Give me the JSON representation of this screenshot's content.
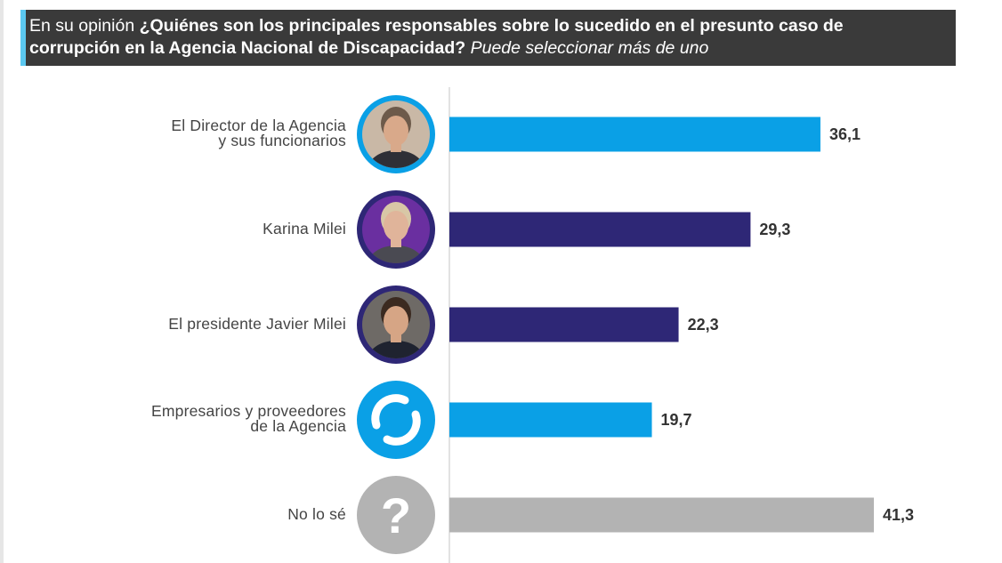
{
  "header": {
    "intro": "En su opinión",
    "question": "¿Quiénes son los principales responsables sobre lo sucedido en el presunto caso de corrupción en la Agencia Nacional de Discapacidad?",
    "note": "Puede seleccionar más de uno"
  },
  "colors": {
    "header_bg": "#3a3a3a",
    "accent": "#5bc8f0",
    "light_blue": "#0aa0e6",
    "dark_blue": "#2e2776",
    "gray": "#b3b3b3"
  },
  "chart_data": {
    "type": "bar",
    "orientation": "horizontal",
    "title": "¿Quiénes son los principales responsables sobre lo sucedido en el presunto caso de corrupción en la Agencia Nacional de Discapacidad?",
    "xlim": [
      0,
      50
    ],
    "grid": false,
    "categories": [
      {
        "label_lines": [
          "El Director de la Agencia",
          "y sus funcionarios"
        ],
        "value": 36.1,
        "display": "36,1",
        "color": "#0aa0e6",
        "icon": "director-portrait-icon"
      },
      {
        "label_lines": [
          "Karina Milei"
        ],
        "value": 29.3,
        "display": "29,3",
        "color": "#2e2776",
        "icon": "karina-milei-portrait-icon"
      },
      {
        "label_lines": [
          "El presidente Javier Milei"
        ],
        "value": 22.3,
        "display": "22,3",
        "color": "#2e2776",
        "icon": "javier-milei-portrait-icon"
      },
      {
        "label_lines": [
          "Empresarios y proveedores",
          "de la Agencia"
        ],
        "value": 19.7,
        "display": "19,7",
        "color": "#0aa0e6",
        "icon": "agency-logo-icon"
      },
      {
        "label_lines": [
          "No lo sé"
        ],
        "value": 41.3,
        "display": "41,3",
        "color": "#b3b3b3",
        "icon": "question-mark-icon"
      }
    ]
  }
}
